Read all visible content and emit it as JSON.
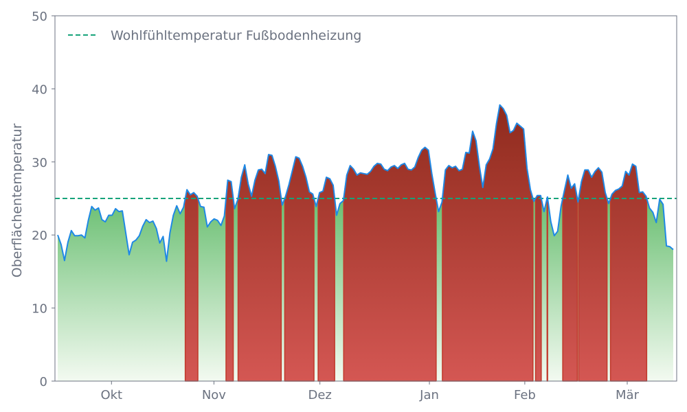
{
  "chart_data": {
    "type": "area",
    "ylabel": "Oberflächentemperatur",
    "ylim": [
      0,
      50
    ],
    "yticks": [
      0,
      10,
      20,
      30,
      40,
      50
    ],
    "xlim": [
      0,
      176
    ],
    "x_ticks": [
      {
        "label": "Okt",
        "x": 16
      },
      {
        "label": "Nov",
        "x": 45
      },
      {
        "label": "Dez",
        "x": 75
      },
      {
        "label": "Jan",
        "x": 106
      },
      {
        "label": "Feb",
        "x": 133
      },
      {
        "label": "Mär",
        "x": 162
      }
    ],
    "threshold": {
      "name": "Wohlfühltemperatur Fußbodenheizung",
      "value": 25
    },
    "legend_position": "top-left",
    "grid": false,
    "colors": {
      "line": "#1e88e5",
      "threshold": "#16a37a",
      "above_top": "#8e2a1c",
      "above_bottom": "#d45753",
      "below_top": "#6abf72",
      "below_bottom": "#f3faf1",
      "axis": "#6b7280"
    },
    "values": [
      20.0,
      18.7,
      16.5,
      19.0,
      20.6,
      19.9,
      19.9,
      20.0,
      19.6,
      22.0,
      23.9,
      23.4,
      23.7,
      22.1,
      21.8,
      22.7,
      22.7,
      23.6,
      23.2,
      23.3,
      20.3,
      17.3,
      19.0,
      19.3,
      19.9,
      21.2,
      22.1,
      21.7,
      21.9,
      20.9,
      18.9,
      19.8,
      16.4,
      20.3,
      22.7,
      24.0,
      22.9,
      23.8,
      26.2,
      25.5,
      25.8,
      25.3,
      23.9,
      23.8,
      21.1,
      21.8,
      22.2,
      22.0,
      21.3,
      22.6,
      27.5,
      27.3,
      23.6,
      24.9,
      27.9,
      29.6,
      27.0,
      25.3,
      27.5,
      28.9,
      29.0,
      28.4,
      31.0,
      30.9,
      29.4,
      27.4,
      24.1,
      25.3,
      26.9,
      28.8,
      30.7,
      30.5,
      29.4,
      27.9,
      25.9,
      25.6,
      23.9,
      25.8,
      26.0,
      27.9,
      27.7,
      26.8,
      22.7,
      24.3,
      24.7,
      28.2,
      29.5,
      29.0,
      28.2,
      28.5,
      28.4,
      28.3,
      28.7,
      29.4,
      29.8,
      29.7,
      29.0,
      28.8,
      29.3,
      29.5,
      29.1,
      29.6,
      29.8,
      29.0,
      28.9,
      29.3,
      30.6,
      31.6,
      32.0,
      31.6,
      28.4,
      25.7,
      23.2,
      24.5,
      28.9,
      29.5,
      29.2,
      29.4,
      28.8,
      29.0,
      31.3,
      31.2,
      34.2,
      32.9,
      29.4,
      26.5,
      29.6,
      30.4,
      31.8,
      35.2,
      37.8,
      37.3,
      36.4,
      34.0,
      34.3,
      35.3,
      34.9,
      34.5,
      29.1,
      26.2,
      24.6,
      25.4,
      25.4,
      23.2,
      25.2,
      21.8,
      19.9,
      20.5,
      23.9,
      26.1,
      28.2,
      26.4,
      27.0,
      24.5,
      27.3,
      28.9,
      28.9,
      27.9,
      28.7,
      29.2,
      28.6,
      25.8,
      24.3,
      25.6,
      26.1,
      26.3,
      26.7,
      28.7,
      28.2,
      29.7,
      29.4,
      25.8,
      25.9,
      25.3,
      23.7,
      23.1,
      21.7,
      24.9,
      24.2,
      18.5,
      18.4,
      18.0
    ]
  }
}
